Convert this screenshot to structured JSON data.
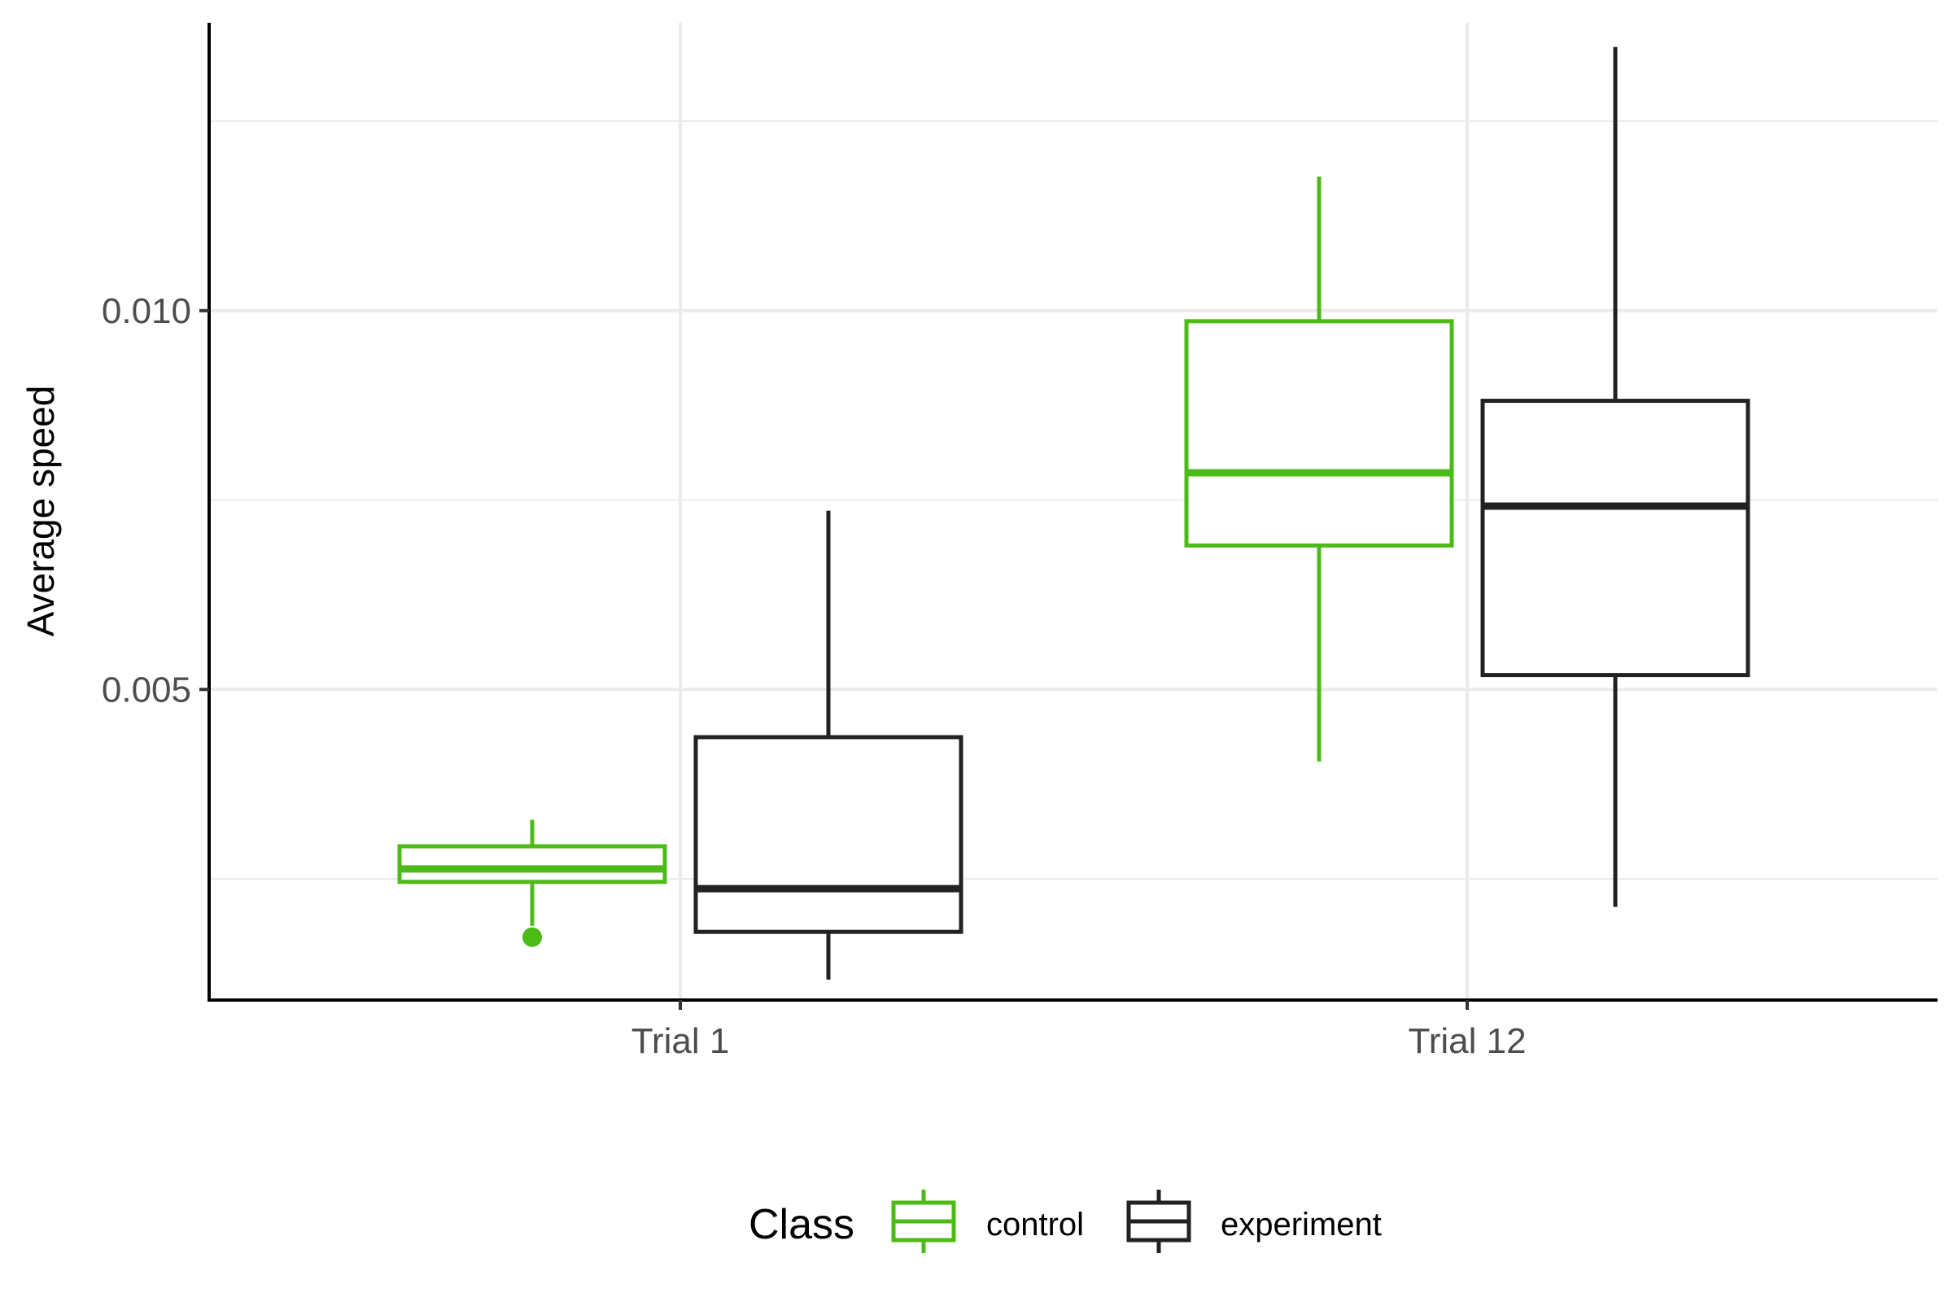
{
  "chart_data": {
    "type": "boxplot",
    "title": "",
    "xlabel": "",
    "ylabel": "Average speed",
    "categories": [
      "Trial 1",
      "Trial 12"
    ],
    "ylim": [
      0.0009,
      0.0138
    ],
    "y_ticks": [
      0.005,
      0.01
    ],
    "y_tick_labels": [
      "0.005",
      "0.010"
    ],
    "grid": true,
    "legend": {
      "title": "Class",
      "position": "bottom"
    },
    "series": [
      {
        "name": "control",
        "color": "#4cbb17",
        "boxes": [
          {
            "category": "Trial 1",
            "whisker_low": 0.00188,
            "q1": 0.00246,
            "median": 0.00263,
            "q3": 0.00293,
            "whisker_high": 0.00328,
            "outliers": [
              0.00173
            ]
          },
          {
            "category": "Trial 12",
            "whisker_low": 0.00405,
            "q1": 0.0069,
            "median": 0.00786,
            "q3": 0.00986,
            "whisker_high": 0.01177,
            "outliers": []
          }
        ]
      },
      {
        "name": "experiment",
        "color": "#222222",
        "boxes": [
          {
            "category": "Trial 1",
            "whisker_low": 0.00117,
            "q1": 0.0018,
            "median": 0.00237,
            "q3": 0.00437,
            "whisker_high": 0.00736,
            "outliers": []
          },
          {
            "category": "Trial 12",
            "whisker_low": 0.00213,
            "q1": 0.00519,
            "median": 0.00742,
            "q3": 0.00881,
            "whisker_high": 0.01348,
            "outliers": []
          }
        ]
      }
    ]
  }
}
